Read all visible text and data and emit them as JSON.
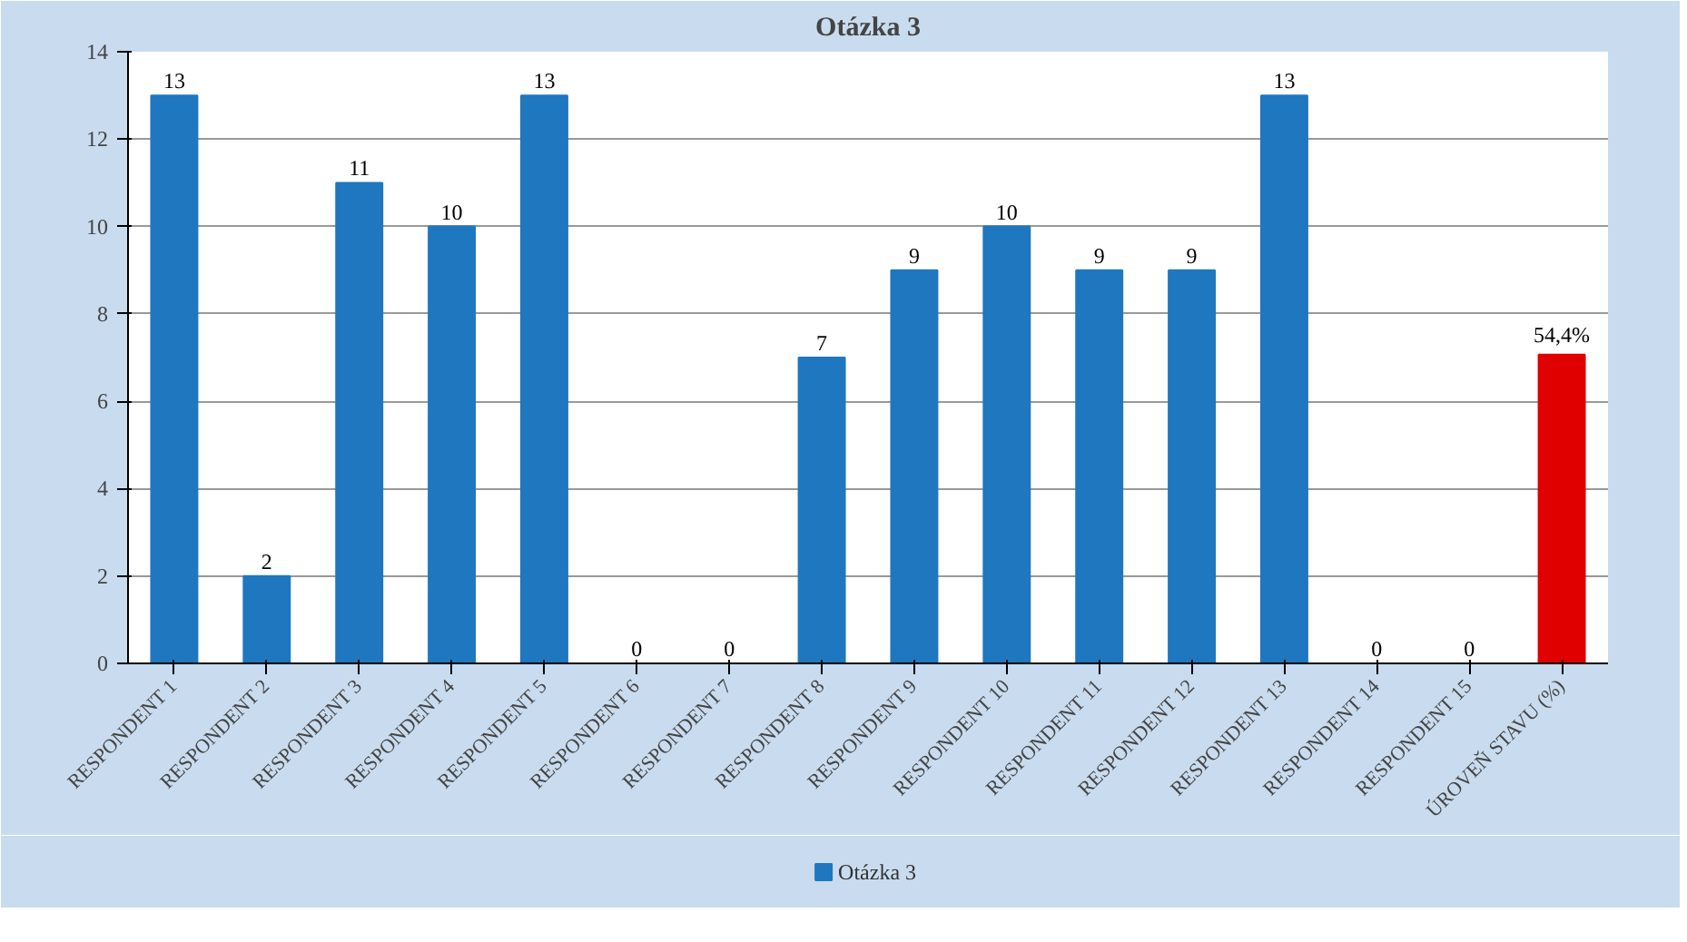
{
  "chart_data": {
    "type": "bar",
    "title": "Otázka 3",
    "categories": [
      "RESPONDENT 1",
      "RESPONDENT 2",
      "RESPONDENT 3",
      "RESPONDENT 4",
      "RESPONDENT 5",
      "RESPONDENT 6",
      "RESPONDENT 7",
      "RESPONDENT 8",
      "RESPONDENT 9",
      "RESPONDENT 10",
      "RESPONDENT 11",
      "RESPONDENT 12",
      "RESPONDENT 13",
      "RESPONDENT 14",
      "RESPONDENT 15",
      "ÚROVEŇ STAVU (%)"
    ],
    "series": [
      {
        "name": "Otázka 3",
        "color": "#1f77c0",
        "values": [
          13,
          2,
          11,
          10,
          13,
          0,
          0,
          7,
          9,
          10,
          9,
          9,
          13,
          0,
          0,
          7.07
        ],
        "colors": [
          "#1f77c0",
          "#1f77c0",
          "#1f77c0",
          "#1f77c0",
          "#1f77c0",
          "#1f77c0",
          "#1f77c0",
          "#1f77c0",
          "#1f77c0",
          "#1f77c0",
          "#1f77c0",
          "#1f77c0",
          "#1f77c0",
          "#1f77c0",
          "#1f77c0",
          "#e00000"
        ],
        "value_labels": [
          "13",
          "2",
          "11",
          "10",
          "13",
          "0",
          "0",
          "7",
          "9",
          "10",
          "9",
          "9",
          "13",
          "0",
          "0",
          null
        ]
      }
    ],
    "annotations": [
      {
        "text": "54,4%",
        "x": "ÚROVEŇ STAVU (%)",
        "y": 7.07
      }
    ],
    "ylim": [
      0,
      14
    ],
    "yticks": [
      0,
      2,
      4,
      6,
      8,
      10,
      12,
      14
    ],
    "grid": "y",
    "legend": "bottom"
  }
}
